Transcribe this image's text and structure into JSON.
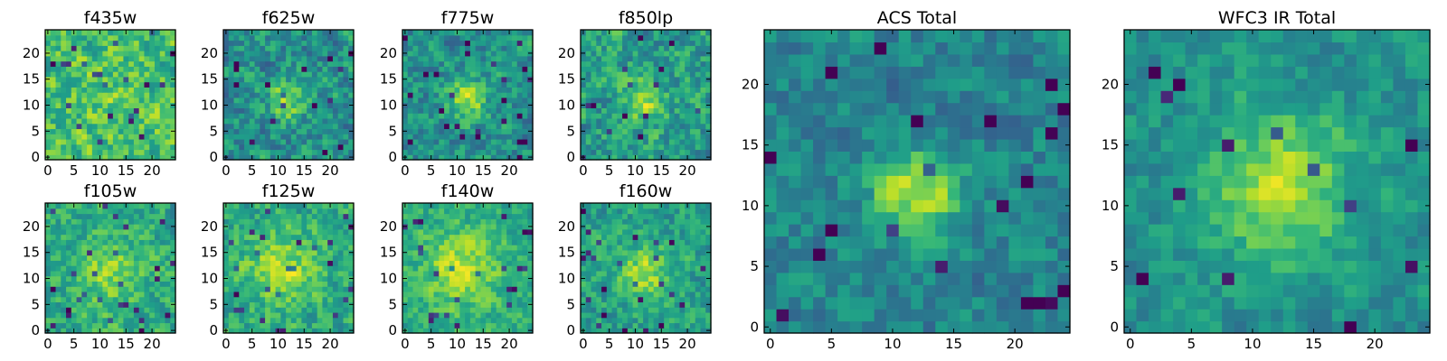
{
  "figure": {
    "panel_count": 10
  },
  "chart_data": [
    {
      "type": "heatmap",
      "title": "f435w",
      "x_ticks": [
        0,
        5,
        10,
        15,
        20
      ],
      "y_ticks": [
        0,
        5,
        10,
        15,
        20
      ],
      "grid_size": 25,
      "xlim": [
        -0.5,
        24.5
      ],
      "ylim": [
        -0.5,
        24.5
      ],
      "colormap": "viridis",
      "peak": [
        12,
        12
      ],
      "spread": 5,
      "signal": 0.05,
      "noise": 0.55,
      "base": 0.7,
      "seed": 11
    },
    {
      "type": "heatmap",
      "title": "f625w",
      "x_ticks": [
        0,
        5,
        10,
        15,
        20
      ],
      "y_ticks": [
        0,
        5,
        10,
        15,
        20
      ],
      "grid_size": 25,
      "xlim": [
        -0.5,
        24.5
      ],
      "ylim": [
        -0.5,
        24.5
      ],
      "colormap": "viridis",
      "peak": [
        12,
        11
      ],
      "spread": 2.5,
      "signal": 0.35,
      "noise": 0.55,
      "base": 0.5,
      "seed": 23
    },
    {
      "type": "heatmap",
      "title": "f775w",
      "x_ticks": [
        0,
        5,
        10,
        15,
        20
      ],
      "y_ticks": [
        0,
        5,
        10,
        15,
        20
      ],
      "grid_size": 25,
      "xlim": [
        -0.5,
        24.5
      ],
      "ylim": [
        -0.5,
        24.5
      ],
      "colormap": "viridis",
      "peak": [
        12,
        11
      ],
      "spread": 2.5,
      "signal": 0.4,
      "noise": 0.5,
      "base": 0.5,
      "seed": 37
    },
    {
      "type": "heatmap",
      "title": "f850lp",
      "x_ticks": [
        0,
        5,
        10,
        15,
        20
      ],
      "y_ticks": [
        0,
        5,
        10,
        15,
        20
      ],
      "grid_size": 25,
      "xlim": [
        -0.5,
        24.5
      ],
      "ylim": [
        -0.5,
        24.5
      ],
      "colormap": "viridis",
      "peak": [
        12,
        11
      ],
      "spread": 2.8,
      "signal": 0.3,
      "noise": 0.55,
      "base": 0.55,
      "seed": 41
    },
    {
      "type": "heatmap",
      "title": "f105w",
      "x_ticks": [
        0,
        5,
        10,
        15,
        20
      ],
      "y_ticks": [
        0,
        5,
        10,
        15,
        20
      ],
      "grid_size": 25,
      "xlim": [
        -0.5,
        24.5
      ],
      "ylim": [
        -0.5,
        24.5
      ],
      "colormap": "viridis",
      "peak": [
        12,
        11
      ],
      "spread": 5,
      "signal": 0.2,
      "noise": 0.45,
      "base": 0.6,
      "seed": 53
    },
    {
      "type": "heatmap",
      "title": "f125w",
      "x_ticks": [
        0,
        5,
        10,
        15,
        20
      ],
      "y_ticks": [
        0,
        5,
        10,
        15,
        20
      ],
      "grid_size": 25,
      "xlim": [
        -0.5,
        24.5
      ],
      "ylim": [
        -0.5,
        24.5
      ],
      "colormap": "viridis",
      "peak": [
        11,
        12
      ],
      "spread": 5,
      "signal": 0.25,
      "noise": 0.45,
      "base": 0.6,
      "seed": 67
    },
    {
      "type": "heatmap",
      "title": "f140w",
      "x_ticks": [
        0,
        5,
        10,
        15,
        20
      ],
      "y_ticks": [
        0,
        5,
        10,
        15,
        20
      ],
      "grid_size": 25,
      "xlim": [
        -0.5,
        24.5
      ],
      "ylim": [
        -0.5,
        24.5
      ],
      "colormap": "viridis",
      "peak": [
        11,
        12
      ],
      "spread": 5,
      "signal": 0.25,
      "noise": 0.4,
      "base": 0.62,
      "seed": 71
    },
    {
      "type": "heatmap",
      "title": "f160w",
      "x_ticks": [
        0,
        5,
        10,
        15,
        20
      ],
      "y_ticks": [
        0,
        5,
        10,
        15,
        20
      ],
      "grid_size": 25,
      "xlim": [
        -0.5,
        24.5
      ],
      "ylim": [
        -0.5,
        24.5
      ],
      "colormap": "viridis",
      "peak": [
        12,
        11
      ],
      "spread": 4,
      "signal": 0.3,
      "noise": 0.45,
      "base": 0.55,
      "seed": 83
    },
    {
      "type": "heatmap",
      "title": "ACS Total",
      "x_ticks": [
        0,
        5,
        10,
        15,
        20
      ],
      "y_ticks": [
        0,
        5,
        10,
        15,
        20
      ],
      "grid_size": 25,
      "xlim": [
        -0.5,
        24.5
      ],
      "ylim": [
        -0.5,
        24.5
      ],
      "colormap": "viridis",
      "peak": [
        12,
        11
      ],
      "spread": 2.5,
      "signal": 0.45,
      "noise": 0.4,
      "base": 0.45,
      "seed": 97
    },
    {
      "type": "heatmap",
      "title": "WFC3 IR Total",
      "x_ticks": [
        0,
        5,
        10,
        15,
        20
      ],
      "y_ticks": [
        0,
        5,
        10,
        15,
        20
      ],
      "grid_size": 25,
      "xlim": [
        -0.5,
        24.5
      ],
      "ylim": [
        -0.5,
        24.5
      ],
      "colormap": "viridis",
      "peak": [
        12,
        12
      ],
      "spread": 4.5,
      "signal": 0.35,
      "noise": 0.35,
      "base": 0.5,
      "seed": 101
    }
  ]
}
